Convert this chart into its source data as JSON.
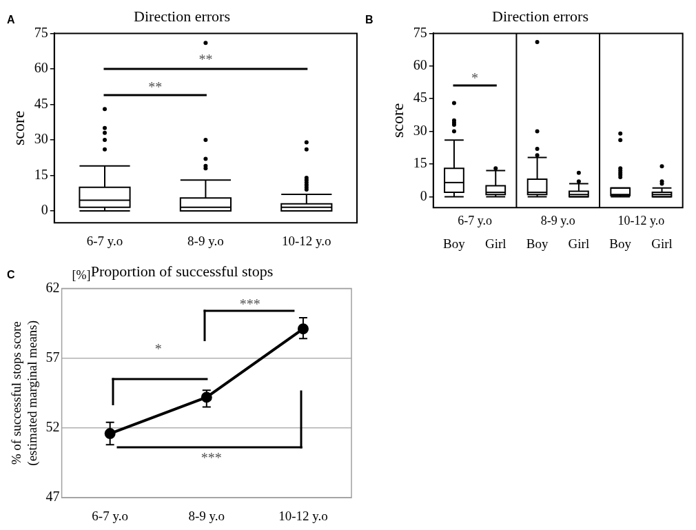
{
  "chart_data": [
    {
      "type": "box",
      "title": "Direction errors",
      "ylabel": "score",
      "categories": [
        "6-7 y.o",
        "8-9 y.o",
        "10-12 y.o"
      ],
      "color": "#000000",
      "ylim": [
        -5,
        75
      ],
      "yticks": [
        0,
        15,
        30,
        45,
        60,
        75
      ],
      "boxes": [
        {
          "low": 0,
          "q1": 1.5,
          "median": 4.5,
          "q3": 10,
          "high": 19,
          "outliers": [
            26,
            30,
            33,
            35,
            43
          ]
        },
        {
          "low": 0,
          "q1": 0,
          "median": 1.5,
          "q3": 5.5,
          "high": 13,
          "outliers": [
            18,
            19,
            22,
            30,
            71
          ]
        },
        {
          "low": 0,
          "q1": 0,
          "median": 1.5,
          "q3": 3,
          "high": 7,
          "outliers": [
            9,
            10,
            11,
            12,
            13,
            14,
            26,
            29
          ]
        }
      ],
      "annotations": [
        "A",
        "**",
        "**"
      ]
    },
    {
      "type": "box",
      "title": "Direction errors",
      "ylabel": "score",
      "categories": [
        "Boy",
        "Girl",
        "Boy",
        "Girl",
        "Boy",
        "Girl"
      ],
      "color": "#000000",
      "ylim": [
        -5,
        75
      ],
      "yticks": [
        0,
        15,
        30,
        45,
        60,
        75
      ],
      "boxes": [
        {
          "low": 0,
          "q1": 2,
          "median": 6.5,
          "q3": 13,
          "high": 26,
          "outliers": [
            30,
            33,
            34,
            35,
            43
          ]
        },
        {
          "low": 0,
          "q1": 1,
          "median": 2,
          "q3": 5,
          "high": 12,
          "outliers": [
            13
          ]
        },
        {
          "low": 0,
          "q1": 1,
          "median": 2,
          "q3": 8,
          "high": 18,
          "outliers": [
            19,
            22,
            30,
            71
          ]
        },
        {
          "low": 0,
          "q1": 0,
          "median": 1,
          "q3": 2.5,
          "high": 6,
          "outliers": [
            7,
            11
          ]
        },
        {
          "low": 0,
          "q1": 0.5,
          "median": 1,
          "q3": 4,
          "high": 4,
          "outliers": [
            9,
            10,
            11,
            12,
            13,
            26,
            29
          ]
        },
        {
          "low": 0,
          "q1": 0,
          "median": 1,
          "q3": 2,
          "high": 4,
          "outliers": [
            6,
            7,
            14
          ]
        }
      ],
      "annotations": [
        "B",
        "*",
        "6-7 y.o",
        "8-9 y.o",
        "10-12 y.o"
      ]
    },
    {
      "type": "line",
      "title": "Proportion of successful stops",
      "ylabel": "% of successful stops score\n(estimated marginal means)",
      "categories": [
        "6-7 y.o",
        "8-9 y.o",
        "10-12 y.o"
      ],
      "values": [
        51.6,
        54.2,
        59.1
      ],
      "errors": [
        [
          50.8,
          52.4
        ],
        [
          53.5,
          54.7
        ],
        [
          58.4,
          59.9
        ]
      ],
      "color": "#000000",
      "marker": "circle",
      "grid": "y",
      "ylim": [
        47,
        62
      ],
      "yticks": [
        47,
        52,
        57,
        62
      ],
      "annotations": [
        "C",
        "[%]",
        "*",
        "***",
        "***"
      ]
    }
  ]
}
